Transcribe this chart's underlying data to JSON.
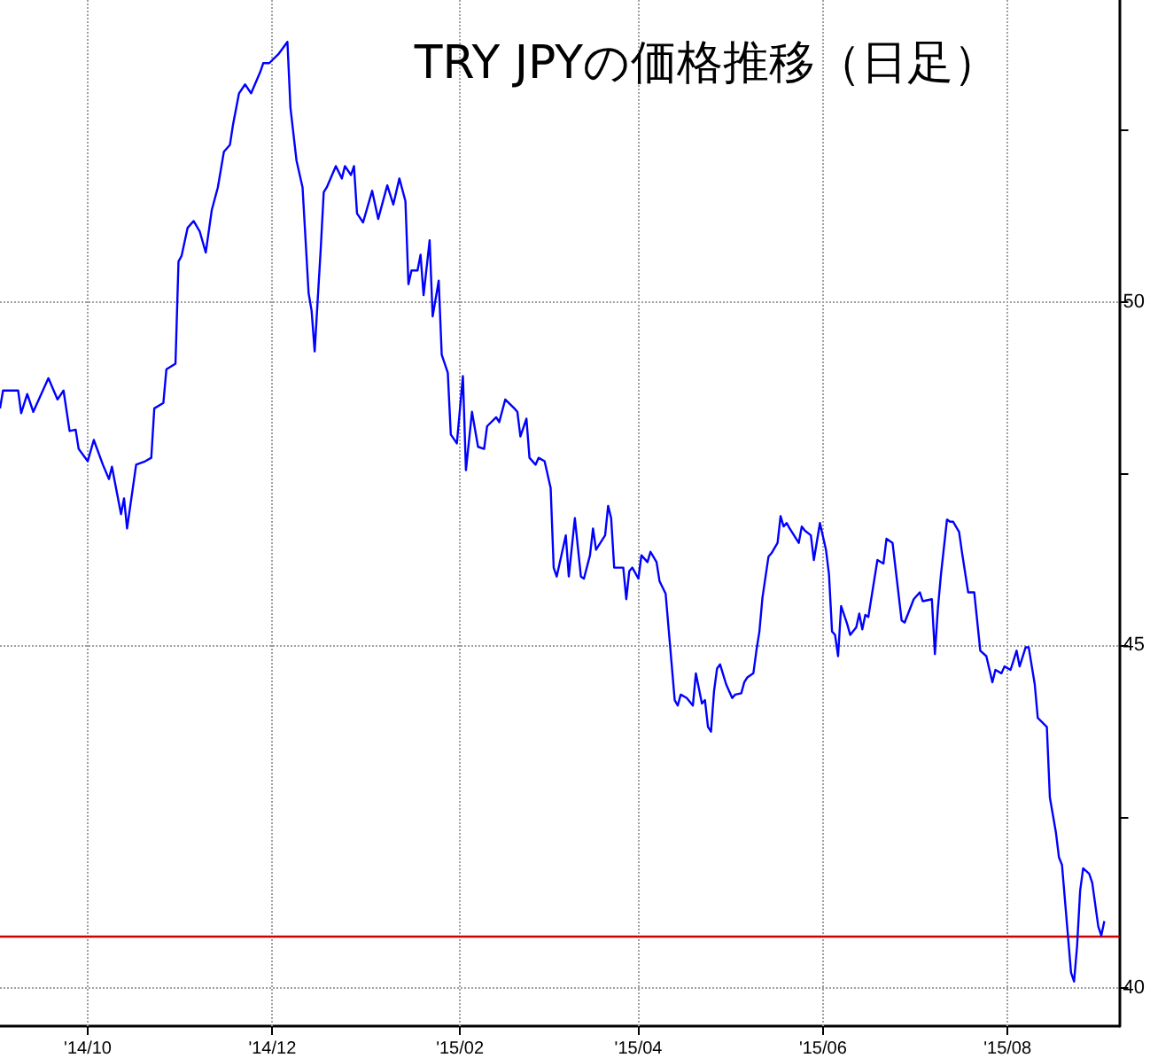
{
  "chart_data": {
    "type": "line",
    "title": "TRY JPYの価格推移（日足）",
    "x": [
      "2014-09-02",
      "2014-09-03",
      "2014-09-08",
      "2014-09-09",
      "2014-09-11",
      "2014-09-13",
      "2014-09-18",
      "2014-09-21",
      "2014-09-23",
      "2014-09-25",
      "2014-09-27",
      "2014-09-28",
      "2014-10-01",
      "2014-10-03",
      "2014-10-06",
      "2014-10-08",
      "2014-10-09",
      "2014-10-12",
      "2014-10-13",
      "2014-10-14",
      "2014-10-17",
      "2014-10-20",
      "2014-10-22",
      "2014-10-23",
      "2014-10-26",
      "2014-10-27",
      "2014-10-30",
      "2014-10-31",
      "2014-11-01",
      "2014-11-03",
      "2014-11-05",
      "2014-11-07",
      "2014-11-09",
      "2014-11-11",
      "2014-11-13",
      "2014-11-15",
      "2014-11-17",
      "2014-11-18",
      "2014-11-20",
      "2014-11-22",
      "2014-11-24",
      "2014-11-27",
      "2014-11-28",
      "2014-11-30",
      "2014-12-03",
      "2014-12-06",
      "2014-12-07",
      "2014-12-09",
      "2014-12-11",
      "2014-12-13",
      "2014-12-14",
      "2014-12-15",
      "2014-12-17",
      "2014-12-18",
      "2014-12-19",
      "2014-12-22",
      "2014-12-24",
      "2014-12-25",
      "2014-12-27",
      "2014-12-28",
      "2014-12-29",
      "2014-12-31",
      "2015-01-03",
      "2015-01-05",
      "2015-01-08",
      "2015-01-10",
      "2015-01-12",
      "2015-01-14",
      "2015-01-15",
      "2015-01-16",
      "2015-01-18",
      "2015-01-19",
      "2015-01-20",
      "2015-01-22",
      "2015-01-23",
      "2015-01-25",
      "2015-01-26",
      "2015-01-28",
      "2015-01-29",
      "2015-01-31",
      "2015-02-02",
      "2015-02-03",
      "2015-02-05",
      "2015-02-07",
      "2015-02-09",
      "2015-02-10",
      "2015-02-13",
      "2015-02-14",
      "2015-02-16",
      "2015-02-19",
      "2015-02-20",
      "2015-02-21",
      "2015-02-23",
      "2015-02-24",
      "2015-02-26",
      "2015-02-27",
      "2015-03-01",
      "2015-03-03",
      "2015-03-04",
      "2015-03-05",
      "2015-03-08",
      "2015-03-09",
      "2015-03-11",
      "2015-03-13",
      "2015-03-14",
      "2015-03-16",
      "2015-03-17",
      "2015-03-18",
      "2015-03-21",
      "2015-03-22",
      "2015-03-23",
      "2015-03-24",
      "2015-03-27",
      "2015-03-28",
      "2015-03-29",
      "2015-03-30",
      "2015-04-01",
      "2015-04-02",
      "2015-04-04",
      "2015-04-05",
      "2015-04-07",
      "2015-04-08",
      "2015-04-10",
      "2015-04-12",
      "2015-04-13",
      "2015-04-14",
      "2015-04-15",
      "2015-04-17",
      "2015-04-19",
      "2015-04-20",
      "2015-04-22",
      "2015-04-23",
      "2015-04-24",
      "2015-04-25",
      "2015-04-26",
      "2015-04-27",
      "2015-04-28",
      "2015-04-30",
      "2015-05-01",
      "2015-05-02",
      "2015-05-03",
      "2015-05-05",
      "2015-05-06",
      "2015-05-07",
      "2015-05-09",
      "2015-05-10",
      "2015-05-11",
      "2015-05-12",
      "2015-05-14",
      "2015-05-15",
      "2015-05-17",
      "2015-05-18",
      "2015-05-19",
      "2015-05-20",
      "2015-05-21",
      "2015-05-24",
      "2015-05-25",
      "2015-05-26",
      "2015-05-28",
      "2015-05-29",
      "2015-05-31",
      "2015-06-02",
      "2015-06-03",
      "2015-06-04",
      "2015-06-05",
      "2015-06-06",
      "2015-06-07",
      "2015-06-09",
      "2015-06-10",
      "2015-06-12",
      "2015-06-13",
      "2015-06-14",
      "2015-06-15",
      "2015-06-16",
      "2015-06-19",
      "2015-06-21",
      "2015-06-22",
      "2015-06-24",
      "2015-06-27",
      "2015-06-28",
      "2015-07-01",
      "2015-07-03",
      "2015-07-04",
      "2015-07-07",
      "2015-07-08",
      "2015-07-09",
      "2015-07-10",
      "2015-07-12",
      "2015-07-13",
      "2015-07-14",
      "2015-07-16",
      "2015-07-17",
      "2015-07-19",
      "2015-07-21",
      "2015-07-23",
      "2015-07-25",
      "2015-07-27",
      "2015-07-28",
      "2015-07-30",
      "2015-07-31",
      "2015-08-02",
      "2015-08-04",
      "2015-08-05",
      "2015-08-07",
      "2015-08-08",
      "2015-08-10",
      "2015-08-11",
      "2015-08-14",
      "2015-08-15",
      "2015-08-17",
      "2015-08-18",
      "2015-08-19",
      "2015-08-22",
      "2015-08-23",
      "2015-08-24",
      "2015-08-25",
      "2015-08-26",
      "2015-08-28",
      "2015-08-29",
      "2015-08-31",
      "2015-09-01",
      "2015-09-02"
    ],
    "series": [
      {
        "color": "#0000ff",
        "values": [
          48.45,
          48.71,
          48.71,
          48.38,
          48.66,
          48.4,
          48.89,
          48.58,
          48.71,
          48.12,
          48.14,
          47.86,
          47.68,
          47.99,
          47.63,
          47.42,
          47.6,
          46.91,
          47.14,
          46.7,
          47.63,
          47.68,
          47.73,
          48.45,
          48.53,
          49.02,
          49.1,
          50.59,
          50.67,
          51.08,
          51.18,
          51.03,
          50.72,
          51.34,
          51.67,
          52.19,
          52.29,
          52.58,
          53.04,
          53.17,
          53.04,
          53.35,
          53.48,
          53.48,
          53.61,
          53.79,
          52.83,
          52.06,
          51.67,
          50.13,
          49.87,
          49.28,
          50.77,
          51.6,
          51.67,
          51.98,
          51.8,
          51.98,
          51.85,
          51.98,
          51.29,
          51.16,
          51.62,
          51.21,
          51.7,
          51.42,
          51.8,
          51.47,
          50.26,
          50.46,
          50.46,
          50.69,
          50.1,
          50.9,
          49.79,
          50.31,
          49.23,
          48.97,
          48.07,
          47.94,
          48.92,
          47.55,
          48.4,
          47.89,
          47.86,
          48.19,
          48.32,
          48.25,
          48.58,
          48.45,
          48.4,
          48.04,
          48.3,
          47.73,
          47.63,
          47.73,
          47.68,
          47.29,
          46.13,
          46.0,
          46.6,
          46.0,
          46.85,
          46.0,
          45.97,
          46.31,
          46.7,
          46.39,
          46.6,
          47.03,
          46.85,
          46.13,
          46.13,
          45.67,
          46.08,
          46.13,
          45.97,
          46.31,
          46.21,
          46.36,
          46.21,
          45.93,
          45.75,
          44.72,
          44.2,
          44.12,
          44.28,
          44.23,
          44.12,
          44.59,
          44.15,
          44.2,
          43.81,
          43.74,
          44.33,
          44.66,
          44.72,
          44.43,
          44.33,
          44.23,
          44.28,
          44.3,
          44.46,
          44.53,
          44.59,
          44.92,
          45.2,
          45.69,
          46.29,
          46.34,
          46.49,
          46.88,
          46.73,
          46.78,
          46.7,
          46.49,
          46.73,
          46.67,
          46.6,
          46.24,
          46.78,
          46.39,
          46.03,
          45.2,
          45.15,
          44.84,
          45.57,
          45.31,
          45.15,
          45.26,
          45.46,
          45.23,
          45.44,
          45.41,
          46.24,
          46.19,
          46.55,
          46.49,
          45.36,
          45.33,
          45.67,
          45.77,
          45.64,
          45.67,
          44.87,
          45.54,
          46.03,
          46.83,
          46.8,
          46.8,
          46.65,
          46.34,
          45.77,
          45.77,
          44.92,
          44.84,
          44.46,
          44.64,
          44.59,
          44.69,
          44.64,
          44.92,
          44.69,
          44.97,
          44.97,
          44.43,
          43.94,
          43.81,
          42.78,
          42.27,
          41.91,
          41.8,
          40.23,
          40.1,
          40.62,
          41.42,
          41.75,
          41.67,
          41.54,
          40.9,
          40.77,
          40.98
        ]
      }
    ],
    "xlim": [
      "2014-09-02",
      "2015-09-07"
    ],
    "xticks": [
      {
        "value": "2014-10-01",
        "label": "'14/10"
      },
      {
        "value": "2014-12-01",
        "label": "'14/12"
      },
      {
        "value": "2015-02-01",
        "label": "'15/02"
      },
      {
        "value": "2015-04-01",
        "label": "'15/04"
      },
      {
        "value": "2015-06-01",
        "label": "'15/06"
      },
      {
        "value": "2015-08-01",
        "label": "'15/08"
      }
    ],
    "ylim": [
      39.45,
      54.4
    ],
    "yticks": [
      40,
      {
        "value": 42.5,
        "label": null
      },
      45,
      {
        "value": 47.5,
        "label": null
      },
      50,
      {
        "value": 52.5,
        "label": null
      }
    ],
    "ref_lines": [
      {
        "axis": "y",
        "value": 40.75,
        "color": "#cc0000"
      }
    ],
    "grid": true,
    "marker": "none",
    "line_style": "solid"
  }
}
